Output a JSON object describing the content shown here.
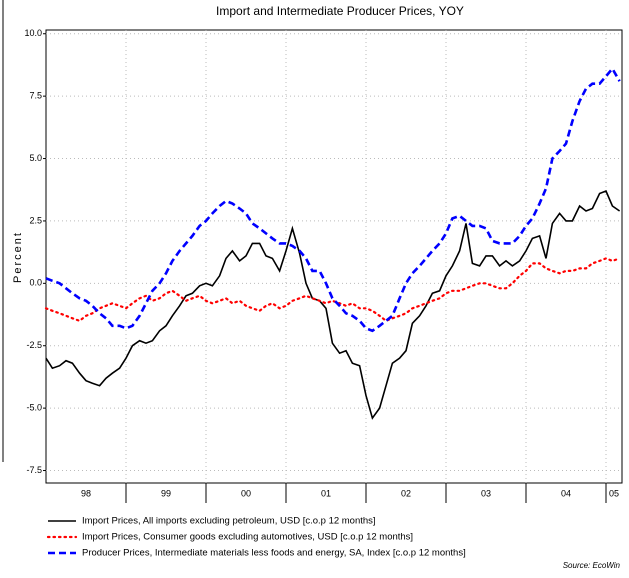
{
  "chart_data": {
    "type": "line",
    "title": "Import and Intermediate Producer Prices, YOY",
    "y_label": "Percent",
    "source": "Source: EcoWin",
    "xlim": [
      1998,
      2005.2
    ],
    "ylim": [
      -8.0,
      10.15
    ],
    "yticks": [
      {
        "value": -7.5,
        "label": "-7.5"
      },
      {
        "value": -5,
        "label": "-5.0"
      },
      -2.5,
      {
        "value": 0,
        "label": "0.0"
      },
      2.5,
      {
        "value": 5,
        "label": "5.0"
      },
      7.5,
      {
        "value": 10,
        "label": "10.0"
      }
    ],
    "xticks": [
      {
        "value": 1998.5,
        "label": "98"
      },
      {
        "value": 1999.5,
        "label": "99"
      },
      {
        "value": 2000.5,
        "label": "00"
      },
      {
        "value": 2001.5,
        "label": "01"
      },
      {
        "value": 2002.5,
        "label": "02"
      },
      {
        "value": 2003.5,
        "label": "03"
      },
      {
        "value": 2004.5,
        "label": "04"
      },
      {
        "value": 2005.1,
        "label": "05"
      }
    ],
    "xminor": [
      1999,
      2000,
      2001,
      2002,
      2003,
      2004,
      2005
    ],
    "grid": true,
    "x": [
      1998.0,
      1998.08,
      1998.17,
      1998.25,
      1998.33,
      1998.42,
      1998.5,
      1998.58,
      1998.67,
      1998.75,
      1998.83,
      1998.92,
      1999.0,
      1999.08,
      1999.17,
      1999.25,
      1999.33,
      1999.42,
      1999.5,
      1999.58,
      1999.67,
      1999.75,
      1999.83,
      1999.92,
      2000.0,
      2000.08,
      2000.17,
      2000.25,
      2000.33,
      2000.42,
      2000.5,
      2000.58,
      2000.67,
      2000.75,
      2000.83,
      2000.92,
      2001.0,
      2001.08,
      2001.17,
      2001.25,
      2001.33,
      2001.42,
      2001.5,
      2001.58,
      2001.67,
      2001.75,
      2001.83,
      2001.92,
      2002.0,
      2002.08,
      2002.17,
      2002.25,
      2002.33,
      2002.42,
      2002.5,
      2002.58,
      2002.67,
      2002.75,
      2002.83,
      2002.92,
      2003.0,
      2003.08,
      2003.17,
      2003.25,
      2003.33,
      2003.42,
      2003.5,
      2003.58,
      2003.67,
      2003.75,
      2003.83,
      2003.92,
      2004.0,
      2004.08,
      2004.17,
      2004.25,
      2004.33,
      2004.42,
      2004.5,
      2004.58,
      2004.67,
      2004.75,
      2004.83,
      2004.92,
      2005.0,
      2005.08,
      2005.17
    ],
    "series": [
      {
        "name": "Import Prices, All imports excluding petroleum, USD [c.o.p 12 months]",
        "color": "#000000",
        "dash": "solid",
        "values": [
          -3.0,
          -3.4,
          -3.3,
          -3.1,
          -3.2,
          -3.6,
          -3.9,
          -4.0,
          -4.1,
          -3.8,
          -3.6,
          -3.4,
          -3.0,
          -2.5,
          -2.3,
          -2.4,
          -2.3,
          -1.9,
          -1.7,
          -1.3,
          -0.9,
          -0.5,
          -0.4,
          -0.1,
          0.0,
          -0.1,
          0.3,
          1.0,
          1.3,
          0.9,
          1.1,
          1.6,
          1.6,
          1.1,
          1.0,
          0.5,
          1.3,
          2.2,
          1.2,
          0.0,
          -0.6,
          -0.7,
          -1.0,
          -2.4,
          -2.8,
          -2.7,
          -3.2,
          -3.3,
          -4.5,
          -5.4,
          -5.0,
          -4.1,
          -3.2,
          -3.0,
          -2.7,
          -1.6,
          -1.3,
          -0.9,
          -0.4,
          -0.3,
          0.3,
          0.7,
          1.3,
          2.4,
          0.8,
          0.7,
          1.1,
          1.1,
          0.7,
          0.9,
          0.7,
          0.9,
          1.3,
          1.8,
          1.9,
          1.0,
          2.4,
          2.8,
          2.5,
          2.5,
          3.1,
          2.9,
          3.0,
          3.6,
          3.7,
          3.1,
          2.9
        ]
      },
      {
        "name": "Import Prices, Consumer goods excluding automotives, USD [c.o.p 12 months]",
        "color": "#ff0000",
        "dash": "dotted",
        "values": [
          -1.0,
          -1.1,
          -1.2,
          -1.3,
          -1.4,
          -1.5,
          -1.3,
          -1.2,
          -1.0,
          -0.9,
          -0.8,
          -0.9,
          -1.0,
          -0.8,
          -0.6,
          -0.5,
          -0.7,
          -0.6,
          -0.4,
          -0.3,
          -0.5,
          -0.7,
          -0.6,
          -0.5,
          -0.7,
          -0.8,
          -0.7,
          -0.6,
          -0.8,
          -0.7,
          -0.9,
          -1.0,
          -1.1,
          -0.9,
          -0.8,
          -1.0,
          -0.9,
          -0.7,
          -0.6,
          -0.5,
          -0.6,
          -0.7,
          -0.8,
          -0.7,
          -0.8,
          -0.9,
          -0.8,
          -1.0,
          -1.0,
          -1.1,
          -1.3,
          -1.5,
          -1.4,
          -1.3,
          -1.2,
          -1.0,
          -0.9,
          -0.8,
          -0.7,
          -0.6,
          -0.4,
          -0.3,
          -0.3,
          -0.2,
          -0.1,
          0.0,
          0.0,
          -0.1,
          -0.2,
          -0.2,
          0.0,
          0.3,
          0.5,
          0.8,
          0.8,
          0.6,
          0.5,
          0.4,
          0.5,
          0.5,
          0.6,
          0.6,
          0.8,
          0.9,
          1.0,
          0.9,
          1.0
        ]
      },
      {
        "name": "Producer Prices, Intermediate materials less foods and energy, SA, Index [c.o.p 12 months]",
        "color": "#0000ff",
        "dash": "dashed",
        "values": [
          0.2,
          0.1,
          0.0,
          -0.2,
          -0.4,
          -0.6,
          -0.7,
          -0.9,
          -1.2,
          -1.4,
          -1.7,
          -1.7,
          -1.8,
          -1.7,
          -1.3,
          -0.8,
          -0.3,
          0.0,
          0.4,
          0.9,
          1.3,
          1.6,
          1.9,
          2.3,
          2.5,
          2.8,
          3.1,
          3.3,
          3.2,
          3.0,
          2.8,
          2.4,
          2.2,
          2.0,
          1.8,
          1.6,
          1.6,
          1.5,
          1.3,
          1.0,
          0.5,
          0.5,
          0.0,
          -0.6,
          -0.9,
          -1.2,
          -1.3,
          -1.5,
          -1.8,
          -1.9,
          -1.7,
          -1.5,
          -1.3,
          -0.6,
          0.0,
          0.4,
          0.7,
          1.0,
          1.3,
          1.6,
          2.0,
          2.6,
          2.7,
          2.5,
          2.3,
          2.3,
          2.2,
          1.7,
          1.6,
          1.6,
          1.6,
          1.9,
          2.3,
          2.6,
          3.2,
          3.8,
          5.0,
          5.3,
          5.6,
          6.5,
          7.3,
          7.8,
          8.0,
          8.0,
          8.3,
          8.6,
          8.1
        ]
      }
    ]
  }
}
